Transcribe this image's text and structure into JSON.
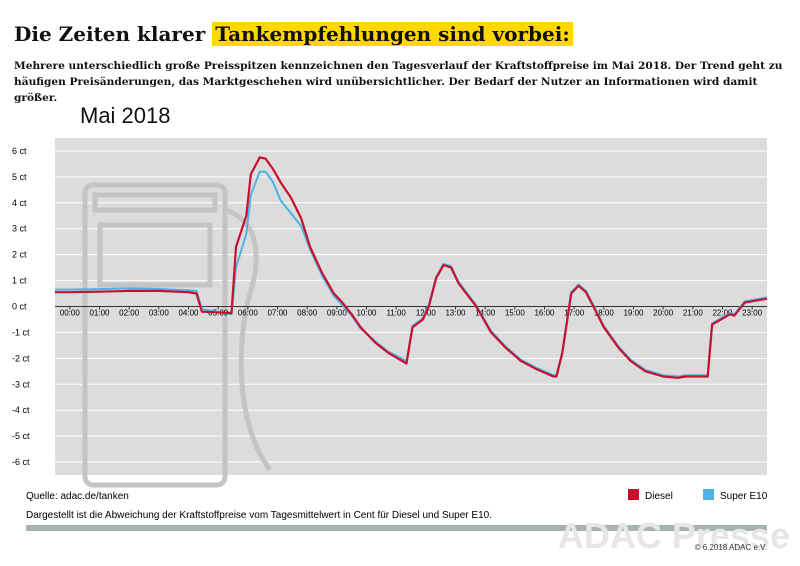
{
  "header": {
    "title": "Die Zeiten klarer ",
    "title_highlight": "Tankempfehlungen sind vorbei:",
    "subtitle": "Mehrere unterschiedlich große Preisspitzen kennzeichnen den Tagesverlauf der Kraftstoffpreise im Mai 2018. Der Trend geht zu häufigen Preisänderungen, das Marktgeschehen wird unübersichtlicher. Der Bedarf der Nutzer an Informationen wird damit größer."
  },
  "chart_data": {
    "type": "line",
    "title": "Mai 2018",
    "x": [
      -0.5,
      0,
      1,
      2,
      3,
      4,
      4.27,
      4.45,
      5.45,
      5.6,
      5.95,
      6.1,
      6.4,
      6.6,
      6.85,
      7.1,
      7.45,
      7.8,
      8.1,
      8.5,
      8.9,
      9.15,
      9.5,
      9.8,
      10.3,
      10.75,
      11.35,
      11.55,
      11.9,
      12.1,
      12.35,
      12.6,
      12.85,
      13.1,
      13.5,
      13.7,
      14.2,
      14.7,
      15.2,
      15.7,
      16.3,
      16.4,
      16.6,
      16.9,
      17.15,
      17.4,
      17.65,
      18.0,
      18.5,
      18.9,
      19.4,
      20,
      20.5,
      20.75,
      21.5,
      21.65,
      22.25,
      22.4,
      22.75,
      23.5
    ],
    "series": [
      {
        "name": "Diesel",
        "color": "#c8102e",
        "values": [
          0.55,
          0.55,
          0.57,
          0.6,
          0.6,
          0.55,
          0.5,
          -0.2,
          -0.25,
          2.3,
          3.5,
          5.1,
          5.75,
          5.7,
          5.3,
          4.8,
          4.2,
          3.4,
          2.3,
          1.3,
          0.5,
          0.2,
          -0.3,
          -0.8,
          -1.4,
          -1.8,
          -2.2,
          -0.8,
          -0.5,
          0,
          1.1,
          1.6,
          1.5,
          0.9,
          0.3,
          0,
          -1,
          -1.6,
          -2.1,
          -2.4,
          -2.7,
          -2.7,
          -1.8,
          0.5,
          0.8,
          0.55,
          0,
          -0.8,
          -1.6,
          -2.1,
          -2.5,
          -2.7,
          -2.75,
          -2.7,
          -2.7,
          -0.7,
          -0.3,
          -0.35,
          0.15,
          0.3
        ]
      },
      {
        "name": "Super E10",
        "color": "#4db3e6",
        "values": [
          0.65,
          0.65,
          0.67,
          0.7,
          0.68,
          0.62,
          0.6,
          -0.1,
          -0.3,
          1.5,
          2.8,
          4.3,
          5.2,
          5.2,
          4.8,
          4.1,
          3.6,
          3.1,
          2.2,
          1.2,
          0.4,
          0.1,
          -0.35,
          -0.85,
          -1.35,
          -1.75,
          -2.1,
          -0.75,
          -0.45,
          0.05,
          1.15,
          1.65,
          1.55,
          0.95,
          0.35,
          0.05,
          -0.95,
          -1.55,
          -2.05,
          -2.35,
          -2.65,
          -2.65,
          -1.75,
          0.55,
          0.85,
          0.6,
          0.05,
          -0.75,
          -1.55,
          -2.05,
          -2.45,
          -2.65,
          -2.7,
          -2.65,
          -2.65,
          -0.65,
          -0.25,
          -0.3,
          0.2,
          0.35
        ]
      }
    ],
    "xlim": [
      -0.5,
      23.5
    ],
    "xticks": [
      {
        "value": 0,
        "label": "00:00"
      },
      {
        "value": 1,
        "label": "01:00"
      },
      {
        "value": 2,
        "label": "02:00"
      },
      {
        "value": 3,
        "label": "03:00"
      },
      {
        "value": 4,
        "label": "04:00"
      },
      {
        "value": 5,
        "label": "05:00"
      },
      {
        "value": 6,
        "label": "06:00"
      },
      {
        "value": 7,
        "label": "07:00"
      },
      {
        "value": 8,
        "label": "08:00"
      },
      {
        "value": 9,
        "label": "09:00"
      },
      {
        "value": 10,
        "label": "10:00"
      },
      {
        "value": 11,
        "label": "11:00"
      },
      {
        "value": 12,
        "label": "12:00"
      },
      {
        "value": 13,
        "label": "13:00"
      },
      {
        "value": 14,
        "label": "14:00"
      },
      {
        "value": 15,
        "label": "15:00"
      },
      {
        "value": 16,
        "label": "16:00"
      },
      {
        "value": 17,
        "label": "17:00"
      },
      {
        "value": 18,
        "label": "18:00"
      },
      {
        "value": 19,
        "label": "19:00"
      },
      {
        "value": 20,
        "label": "20:00"
      },
      {
        "value": 21,
        "label": "21:00"
      },
      {
        "value": 22,
        "label": "22:00"
      },
      {
        "value": 23,
        "label": "23:00"
      }
    ],
    "ylim": [
      -6.5,
      6.5
    ],
    "yticks": [
      {
        "value": 6,
        "label": "6 ct"
      },
      {
        "value": 5,
        "label": "5 ct"
      },
      {
        "value": 4,
        "label": "4 ct"
      },
      {
        "value": 3,
        "label": "3 ct"
      },
      {
        "value": 2,
        "label": "2 ct"
      },
      {
        "value": 1,
        "label": "1 ct"
      },
      {
        "value": 0,
        "label": "0 ct"
      },
      {
        "value": -1,
        "label": "-1 ct"
      },
      {
        "value": -2,
        "label": "-2 ct"
      },
      {
        "value": -3,
        "label": "-3 ct"
      },
      {
        "value": -4,
        "label": "-4 ct"
      },
      {
        "value": -5,
        "label": "-5 ct"
      },
      {
        "value": -6,
        "label": "-6 ct"
      }
    ],
    "grid": true
  },
  "footer": {
    "source": "Quelle: adac.de/tanken",
    "note": "Dargestellt ist die Abweichung der Kraftstoffpreise vom Tagesmittelwert in Cent für Diesel und Super E10.",
    "watermark": "ADAC Presse",
    "copyright": "© 6.2018 ADAC e.V."
  }
}
